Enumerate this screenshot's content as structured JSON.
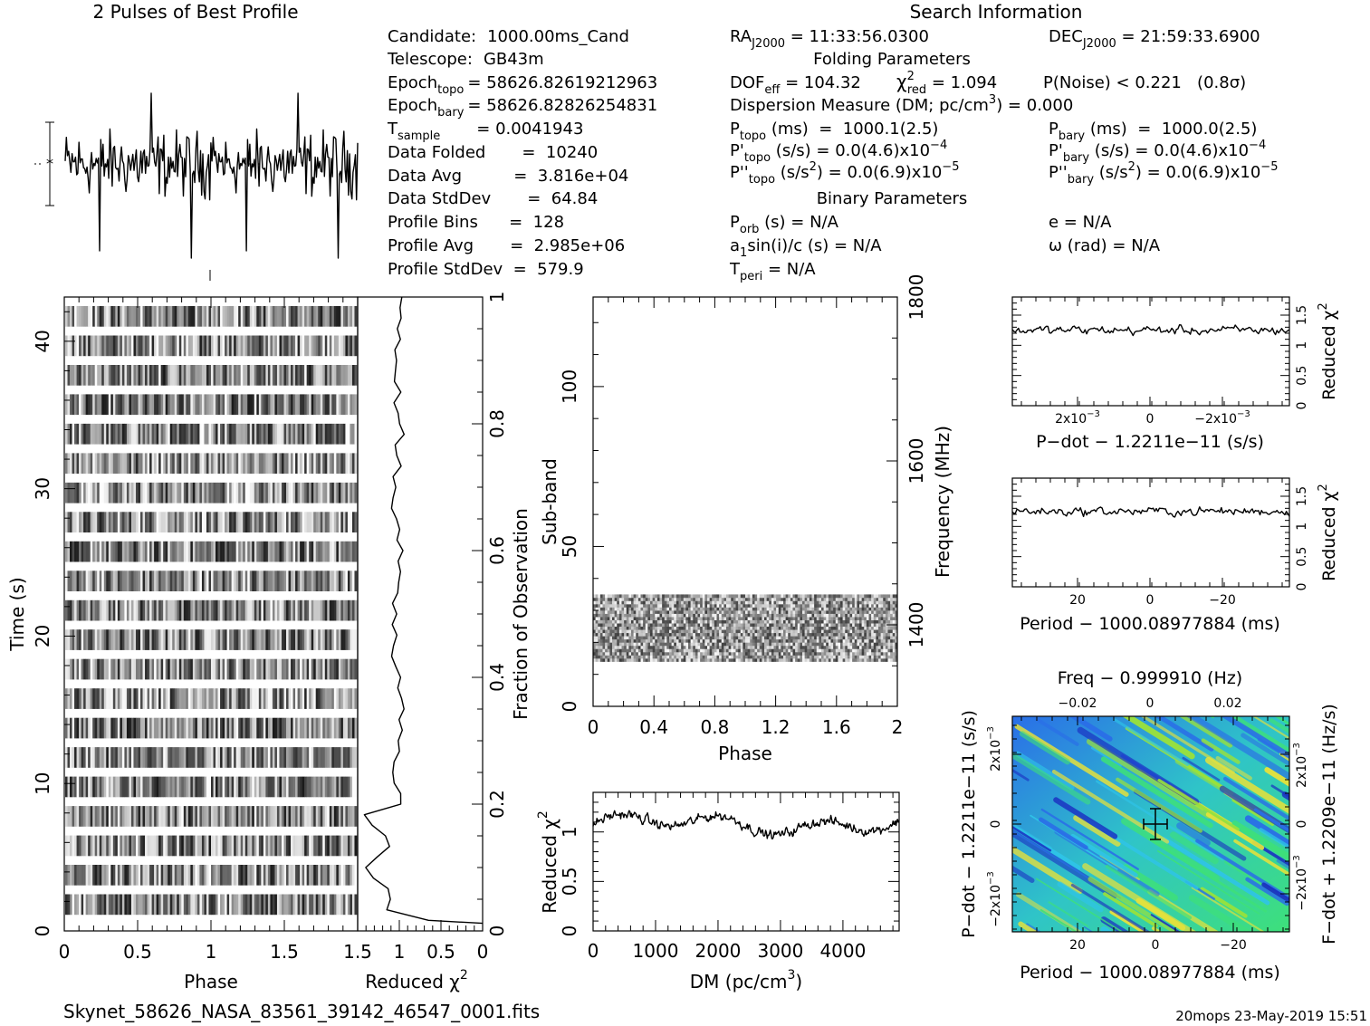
{
  "header": {
    "left_title": "2 Pulses of Best Profile",
    "right_title": "Search Information",
    "filename": "Skynet_58626_NASA_83561_39142_46547_0001.fits",
    "footer_right": "20mops 23-May-2019 15:51"
  },
  "info": {
    "candidate_label": "Candidate:",
    "candidate": "1000.00ms_Cand",
    "telescope_label": "Telescope:",
    "telescope": "GB43m",
    "epoch_topo_label": "Epoch",
    "epoch_topo_sub": "topo",
    "epoch_topo": "= 58626.82619212963",
    "epoch_bary_label": "Epoch",
    "epoch_bary_sub": "bary",
    "epoch_bary": "= 58626.82826254831",
    "tsample_label": "T",
    "tsample_sub": "sample",
    "tsample": "=  0.0041943",
    "data_folded": "Data Folded       =  10240",
    "data_avg": "Data Avg          =  3.816e+04",
    "data_stddev": "Data StdDev       =  64.84",
    "profile_bins": "Profile Bins      =  128",
    "profile_avg": "Profile Avg       =  2.985e+06",
    "profile_stddev": "Profile StdDev  =  579.9"
  },
  "search": {
    "ra_label": "RA",
    "ra_sub": "J2000",
    "ra": " = 11:33:56.0300",
    "dec_label": "DEC",
    "dec_sub": "J2000",
    "dec": " = 21:59:33.6900",
    "folding_title": "Folding Parameters",
    "dof_label": "DOF",
    "dof_sub": "eff",
    "dof": " = 104.32",
    "chi_label": "χ",
    "chi_sup": "2",
    "chi_sub": "red",
    "chi": " = 1.094",
    "pnoise": "P(Noise) < 0.221   (0.8σ)",
    "dm_line": "Dispersion Measure (DM; pc/cm",
    "dm_sup": "3",
    "dm_value": ") = 0.000",
    "ptopo_label": "P",
    "ptopo_sub": "topo",
    "ptopo": " (ms)  =  1000.1(2.5)",
    "pbary_label": "P",
    "pbary_sub": "bary",
    "pbary": " (ms)  =  1000.0(2.5)",
    "pdtopo_label": "P'",
    "pdtopo_sub": "topo",
    "pdtopo": " (s/s) = 0.0(4.6)x10",
    "pdtopo_sup": "−4",
    "pdbary_label": "P'",
    "pdbary_sub": "bary",
    "pdbary": " (s/s) = 0.0(4.6)x10",
    "pdbary_sup": "−4",
    "pddtopo_label": "P''",
    "pddtopo_sub": "topo",
    "pddtopo_pre": " (s/s",
    "pddtopo_sup2": "2",
    "pddtopo": ") = 0.0(6.9)x10",
    "pddtopo_sup": "−5",
    "pddbary_label": "P''",
    "pddbary_sub": "bary",
    "pddbary_pre": " (s/s",
    "pddbary_sup2": "2",
    "pddbary": ") = 0.0(6.9)x10",
    "pddbary_sup": "−5",
    "binary_title": "Binary Parameters",
    "porb_label": "P",
    "porb_sub": "orb",
    "porb": " (s) = N/A",
    "e_line": "e = N/A",
    "a1_label": "a",
    "a1_sub": "1",
    "a1": "sin(i)/c (s) = N/A",
    "omega_line": "ω (rad) = N/A",
    "tperi_label": "T",
    "tperi_sub": "peri",
    "tperi": " = N/A"
  },
  "chart_data": [
    {
      "id": "profile",
      "type": "line",
      "title": "2 Pulses of Best Profile",
      "x_range": [
        0,
        2
      ],
      "points": 256
    },
    {
      "id": "time_phase",
      "type": "heatmap",
      "xlabel": "Phase",
      "ylabel": "Time (s)",
      "x_ticks": [
        "0",
        "0.5",
        "1",
        "1.5"
      ],
      "y_ticks": [
        "0",
        "10",
        "20",
        "30",
        "40"
      ],
      "x_range": [
        0,
        2
      ],
      "y_range": [
        0,
        43
      ]
    },
    {
      "id": "reduced_chi_vs_time",
      "type": "line",
      "xlabel": "Reduced χ",
      "xlabel_sup": "2",
      "x_ticks": [
        "1.5",
        "1",
        "0.5",
        "0"
      ],
      "x_range": [
        1.5,
        0
      ],
      "right_ylabel": "Fraction of Observation",
      "right_y_ticks": [
        "0",
        "0.2",
        "0.4",
        "0.6",
        "0.8",
        "1"
      ]
    },
    {
      "id": "subband_phase",
      "type": "heatmap",
      "xlabel": "Phase",
      "ylabel": "Sub-band",
      "x_ticks": [
        "0",
        "0.4",
        "0.8",
        "1.2",
        "1.6",
        "2"
      ],
      "y_ticks": [
        "0",
        "50",
        "100"
      ],
      "x_range": [
        0,
        2
      ],
      "y_range": [
        0,
        128
      ],
      "filled_subbands": [
        14,
        35
      ],
      "right_ylabel": "Frequency (MHz)",
      "right_y_ticks": [
        "1400",
        "1600",
        "1800"
      ]
    },
    {
      "id": "dm_curve",
      "type": "line",
      "xlabel": "DM (pc/cm",
      "xlabel_sup": "3",
      "xlabel_end": ")",
      "ylabel": "Reduced χ",
      "ylabel_sup": "2",
      "x_ticks": [
        "0",
        "1000",
        "2000",
        "3000",
        "4000"
      ],
      "y_ticks": [
        "0",
        "0.5",
        "1"
      ],
      "x_range": [
        0,
        4900
      ],
      "y_range": [
        0,
        1.4
      ]
    },
    {
      "id": "pdot_curve",
      "type": "line",
      "xlabel": "P−dot − 1.2211e−11 (s/s)",
      "ylabel": "Reduced χ",
      "ylabel_sup": "2",
      "x_ticks": [
        "2x10",
        "0",
        "−2x10"
      ],
      "x_tick_sup": "−3",
      "y_ticks": [
        "0",
        "0.5",
        "1",
        "1.5"
      ],
      "y_range": [
        0,
        1.8
      ]
    },
    {
      "id": "period_curve",
      "type": "line",
      "xlabel": "Period − 1000.08977884 (ms)",
      "ylabel": "Reduced χ",
      "ylabel_sup": "2",
      "x_ticks": [
        "20",
        "0",
        "−20"
      ],
      "y_ticks": [
        "0",
        "0.5",
        "1",
        "1.5"
      ],
      "y_range": [
        0,
        1.8
      ]
    },
    {
      "id": "p_pdot_plane",
      "type": "heatmap",
      "top_xlabel": "Freq − 0.999910 (Hz)",
      "top_x_ticks": [
        "−0.02",
        "0",
        "0.02"
      ],
      "xlabel": "Period − 1000.08977884 (ms)",
      "x_ticks": [
        "20",
        "0",
        "−20"
      ],
      "ylabel": "P−dot − 1.2211e−11 (s/s)",
      "y_ticks": [
        "2x10",
        "0",
        "−2x10"
      ],
      "y_tick_sup": "−3",
      "right_ylabel": "F−dot + 1.2209e−11 (Hz/s)",
      "right_y_ticks": [
        "−2x10",
        "0",
        "2x10"
      ],
      "colors": [
        "#1a2fc2",
        "#2a6ee8",
        "#2fc4e8",
        "#3ee07a",
        "#9be23a",
        "#e8e23a"
      ]
    }
  ]
}
